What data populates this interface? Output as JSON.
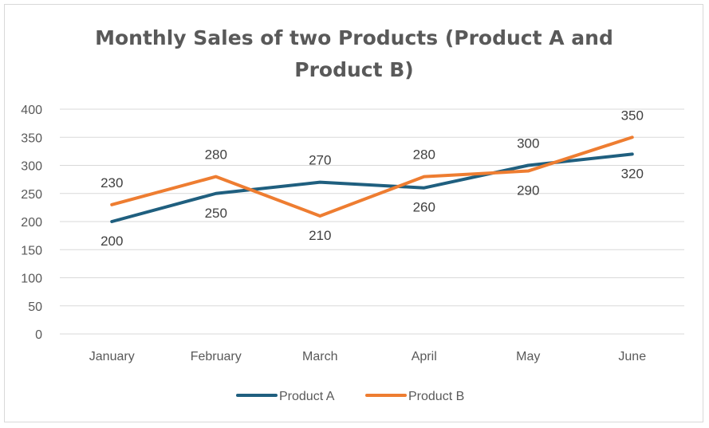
{
  "chart_data": {
    "type": "line",
    "title_lines": [
      "Monthly Sales of two Products (Product A and",
      "Product B)"
    ],
    "categories": [
      "January",
      "February",
      "March",
      "April",
      "May",
      "June"
    ],
    "series": [
      {
        "name": "Product A",
        "values": [
          200,
          250,
          270,
          260,
          300,
          320
        ],
        "color": "#1f5f7f"
      },
      {
        "name": "Product B",
        "values": [
          230,
          280,
          210,
          280,
          290,
          350
        ],
        "color": "#ee7d31"
      }
    ],
    "ylim": [
      0,
      400
    ],
    "yticks": [
      "0",
      "50",
      "100",
      "150",
      "200",
      "250",
      "300",
      "350",
      "400"
    ],
    "grid": true,
    "legend_position": "bottom",
    "data_labels": true
  }
}
